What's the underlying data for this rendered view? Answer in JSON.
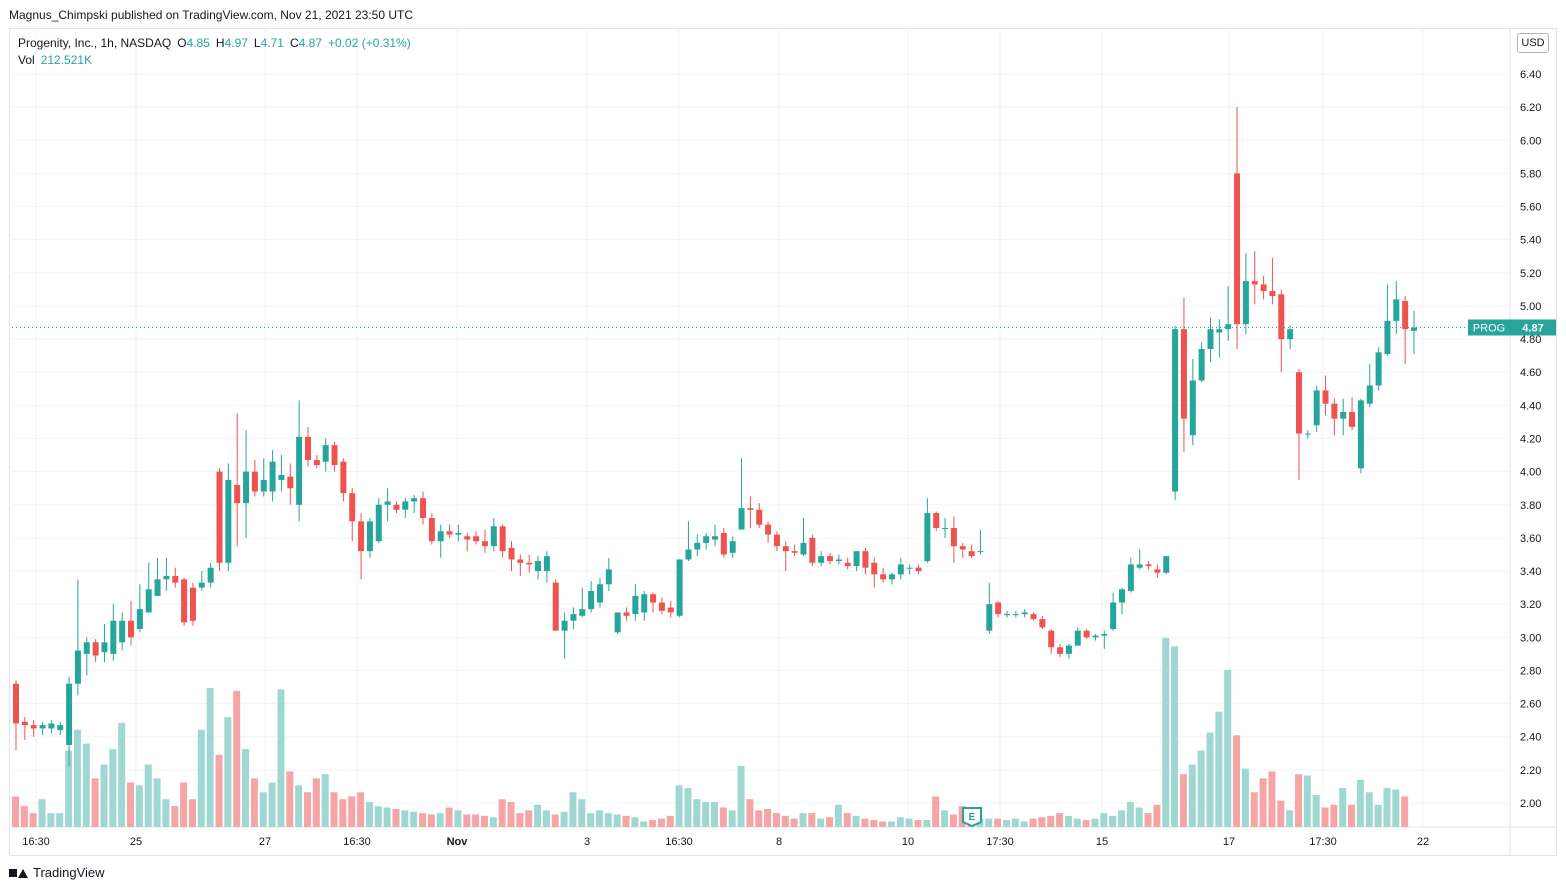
{
  "header": {
    "publisher": "Magnus_Chimpski published on TradingView.com, Nov 21, 2021 23:50 UTC"
  },
  "legend": {
    "symbol_line": "Progenity, Inc., 1h, NASDAQ",
    "o_label": "O",
    "o_value": "4.85",
    "h_label": "H",
    "h_value": "4.97",
    "l_label": "L",
    "l_value": "4.71",
    "c_label": "C",
    "c_value": "4.87",
    "change": "+0.02 (+0.31%)",
    "vol_label": "Vol",
    "vol_value": "212.521K"
  },
  "price_axis": {
    "currency": "USD",
    "ticks": [
      "6.40",
      "6.20",
      "6.00",
      "5.80",
      "5.60",
      "5.40",
      "5.20",
      "5.00",
      "4.80",
      "4.60",
      "4.40",
      "4.20",
      "4.00",
      "3.80",
      "3.60",
      "3.40",
      "3.20",
      "3.00",
      "2.80",
      "2.60",
      "2.40",
      "2.20",
      "2.00"
    ]
  },
  "last_price": {
    "symbol": "PROG",
    "value": "4.87"
  },
  "time_axis": {
    "labels": [
      "16:30",
      "25",
      "27",
      "16:30",
      "Nov",
      "3",
      "16:30",
      "8",
      "10",
      "17:30",
      "15",
      "17",
      "17:30",
      "22"
    ]
  },
  "footer": {
    "brand": "TradingView"
  },
  "earnings_marker": {
    "label": "E"
  },
  "colors": {
    "up": "#26a69a",
    "down": "#ef5350",
    "up_volume": "#9fd8d2",
    "down_volume": "#f5a5a5",
    "grid": "#f0f3fa",
    "axis_text": "#131722"
  },
  "chart_data": {
    "type": "candlestick",
    "title": "Progenity, Inc., 1h, NASDAQ",
    "ylabel": "USD",
    "ylim": [
      1.85,
      6.5
    ],
    "grid": true,
    "candles": [
      {
        "o": 2.72,
        "h": 2.74,
        "l": 2.32,
        "c": 2.48
      },
      {
        "o": 2.49,
        "h": 2.52,
        "l": 2.38,
        "c": 2.47
      },
      {
        "o": 2.47,
        "h": 2.5,
        "l": 2.4,
        "c": 2.45
      },
      {
        "o": 2.45,
        "h": 2.49,
        "l": 2.41,
        "c": 2.47
      },
      {
        "o": 2.45,
        "h": 2.5,
        "l": 2.42,
        "c": 2.48
      },
      {
        "o": 2.44,
        "h": 2.49,
        "l": 2.41,
        "c": 2.47
      },
      {
        "o": 2.35,
        "h": 2.76,
        "l": 2.22,
        "c": 2.72
      },
      {
        "o": 2.72,
        "h": 3.35,
        "l": 2.65,
        "c": 2.92
      },
      {
        "o": 2.9,
        "h": 3.0,
        "l": 2.77,
        "c": 2.97
      },
      {
        "o": 2.97,
        "h": 2.99,
        "l": 2.85,
        "c": 2.89
      },
      {
        "o": 2.91,
        "h": 3.08,
        "l": 2.85,
        "c": 2.97
      },
      {
        "o": 2.9,
        "h": 3.2,
        "l": 2.86,
        "c": 3.1
      },
      {
        "o": 2.97,
        "h": 3.15,
        "l": 2.92,
        "c": 3.1
      },
      {
        "o": 3.1,
        "h": 3.22,
        "l": 2.95,
        "c": 3.0
      },
      {
        "o": 3.05,
        "h": 3.32,
        "l": 3.03,
        "c": 3.17
      },
      {
        "o": 3.15,
        "h": 3.45,
        "l": 3.15,
        "c": 3.29
      },
      {
        "o": 3.25,
        "h": 3.48,
        "l": 3.25,
        "c": 3.35
      },
      {
        "o": 3.35,
        "h": 3.48,
        "l": 3.28,
        "c": 3.37
      },
      {
        "o": 3.37,
        "h": 3.42,
        "l": 3.3,
        "c": 3.33
      },
      {
        "o": 3.35,
        "h": 3.36,
        "l": 3.07,
        "c": 3.09
      },
      {
        "o": 3.3,
        "h": 3.33,
        "l": 3.07,
        "c": 3.1
      },
      {
        "o": 3.3,
        "h": 3.4,
        "l": 3.28,
        "c": 3.33
      },
      {
        "o": 3.33,
        "h": 3.45,
        "l": 3.3,
        "c": 3.42
      },
      {
        "o": 4.0,
        "h": 4.02,
        "l": 3.4,
        "c": 3.45
      },
      {
        "o": 3.45,
        "h": 4.05,
        "l": 3.4,
        "c": 3.95
      },
      {
        "o": 3.92,
        "h": 4.35,
        "l": 3.55,
        "c": 3.81
      },
      {
        "o": 3.81,
        "h": 4.25,
        "l": 3.6,
        "c": 4.0
      },
      {
        "o": 4.0,
        "h": 4.07,
        "l": 3.85,
        "c": 3.88
      },
      {
        "o": 3.88,
        "h": 4.08,
        "l": 3.85,
        "c": 3.95
      },
      {
        "o": 3.88,
        "h": 4.13,
        "l": 3.82,
        "c": 4.06
      },
      {
        "o": 3.95,
        "h": 4.1,
        "l": 3.88,
        "c": 3.98
      },
      {
        "o": 3.97,
        "h": 4.05,
        "l": 3.8,
        "c": 3.9
      },
      {
        "o": 3.8,
        "h": 4.43,
        "l": 3.7,
        "c": 4.21
      },
      {
        "o": 4.21,
        "h": 4.27,
        "l": 4.03,
        "c": 4.07
      },
      {
        "o": 4.07,
        "h": 4.1,
        "l": 4.02,
        "c": 4.04
      },
      {
        "o": 4.06,
        "h": 4.2,
        "l": 4.0,
        "c": 4.16
      },
      {
        "o": 4.16,
        "h": 4.18,
        "l": 4.0,
        "c": 4.04
      },
      {
        "o": 4.06,
        "h": 4.08,
        "l": 3.82,
        "c": 3.87
      },
      {
        "o": 3.87,
        "h": 3.9,
        "l": 3.58,
        "c": 3.7
      },
      {
        "o": 3.7,
        "h": 3.75,
        "l": 3.35,
        "c": 3.52
      },
      {
        "o": 3.52,
        "h": 3.72,
        "l": 3.48,
        "c": 3.7
      },
      {
        "o": 3.58,
        "h": 3.84,
        "l": 3.57,
        "c": 3.8
      },
      {
        "o": 3.8,
        "h": 3.9,
        "l": 3.7,
        "c": 3.82
      },
      {
        "o": 3.8,
        "h": 3.82,
        "l": 3.75,
        "c": 3.77
      },
      {
        "o": 3.77,
        "h": 3.84,
        "l": 3.72,
        "c": 3.82
      },
      {
        "o": 3.82,
        "h": 3.86,
        "l": 3.75,
        "c": 3.84
      },
      {
        "o": 3.84,
        "h": 3.88,
        "l": 3.68,
        "c": 3.72
      },
      {
        "o": 3.72,
        "h": 3.75,
        "l": 3.56,
        "c": 3.58
      },
      {
        "o": 3.58,
        "h": 3.68,
        "l": 3.48,
        "c": 3.64
      },
      {
        "o": 3.64,
        "h": 3.68,
        "l": 3.6,
        "c": 3.62
      },
      {
        "o": 3.62,
        "h": 3.68,
        "l": 3.58,
        "c": 3.63
      },
      {
        "o": 3.61,
        "h": 3.63,
        "l": 3.52,
        "c": 3.59
      },
      {
        "o": 3.61,
        "h": 3.64,
        "l": 3.56,
        "c": 3.58
      },
      {
        "o": 3.58,
        "h": 3.65,
        "l": 3.51,
        "c": 3.55
      },
      {
        "o": 3.55,
        "h": 3.72,
        "l": 3.52,
        "c": 3.67
      },
      {
        "o": 3.67,
        "h": 3.68,
        "l": 3.48,
        "c": 3.52
      },
      {
        "o": 3.54,
        "h": 3.58,
        "l": 3.4,
        "c": 3.47
      },
      {
        "o": 3.47,
        "h": 3.5,
        "l": 3.37,
        "c": 3.45
      },
      {
        "o": 3.45,
        "h": 3.5,
        "l": 3.39,
        "c": 3.44
      },
      {
        "o": 3.4,
        "h": 3.49,
        "l": 3.35,
        "c": 3.46
      },
      {
        "o": 3.4,
        "h": 3.52,
        "l": 3.33,
        "c": 3.49
      },
      {
        "o": 3.33,
        "h": 3.35,
        "l": 3.04,
        "c": 3.04
      },
      {
        "o": 3.04,
        "h": 3.15,
        "l": 2.87,
        "c": 3.1
      },
      {
        "o": 3.1,
        "h": 3.18,
        "l": 3.05,
        "c": 3.14
      },
      {
        "o": 3.13,
        "h": 3.3,
        "l": 3.12,
        "c": 3.17
      },
      {
        "o": 3.17,
        "h": 3.34,
        "l": 3.15,
        "c": 3.28
      },
      {
        "o": 3.21,
        "h": 3.36,
        "l": 3.18,
        "c": 3.32
      },
      {
        "o": 3.32,
        "h": 3.48,
        "l": 3.28,
        "c": 3.41
      },
      {
        "o": 3.03,
        "h": 3.15,
        "l": 3.02,
        "c": 3.15
      },
      {
        "o": 3.15,
        "h": 3.18,
        "l": 3.1,
        "c": 3.13
      },
      {
        "o": 3.14,
        "h": 3.32,
        "l": 3.1,
        "c": 3.25
      },
      {
        "o": 3.15,
        "h": 3.28,
        "l": 3.1,
        "c": 3.26
      },
      {
        "o": 3.26,
        "h": 3.27,
        "l": 3.15,
        "c": 3.21
      },
      {
        "o": 3.21,
        "h": 3.24,
        "l": 3.14,
        "c": 3.16
      },
      {
        "o": 3.18,
        "h": 3.22,
        "l": 3.12,
        "c": 3.15
      },
      {
        "o": 3.13,
        "h": 3.47,
        "l": 3.12,
        "c": 3.47
      },
      {
        "o": 3.47,
        "h": 3.7,
        "l": 3.46,
        "c": 3.53
      },
      {
        "o": 3.53,
        "h": 3.62,
        "l": 3.49,
        "c": 3.57
      },
      {
        "o": 3.57,
        "h": 3.63,
        "l": 3.53,
        "c": 3.61
      },
      {
        "o": 3.59,
        "h": 3.68,
        "l": 3.55,
        "c": 3.61
      },
      {
        "o": 3.63,
        "h": 3.66,
        "l": 3.48,
        "c": 3.5
      },
      {
        "o": 3.51,
        "h": 3.61,
        "l": 3.48,
        "c": 3.58
      },
      {
        "o": 3.65,
        "h": 4.08,
        "l": 3.65,
        "c": 3.78
      },
      {
        "o": 3.78,
        "h": 3.85,
        "l": 3.66,
        "c": 3.77
      },
      {
        "o": 3.77,
        "h": 3.81,
        "l": 3.66,
        "c": 3.68
      },
      {
        "o": 3.68,
        "h": 3.7,
        "l": 3.57,
        "c": 3.62
      },
      {
        "o": 3.62,
        "h": 3.64,
        "l": 3.52,
        "c": 3.55
      },
      {
        "o": 3.55,
        "h": 3.58,
        "l": 3.4,
        "c": 3.52
      },
      {
        "o": 3.52,
        "h": 3.56,
        "l": 3.49,
        "c": 3.51
      },
      {
        "o": 3.5,
        "h": 3.72,
        "l": 3.49,
        "c": 3.57
      },
      {
        "o": 3.6,
        "h": 3.62,
        "l": 3.43,
        "c": 3.45
      },
      {
        "o": 3.45,
        "h": 3.52,
        "l": 3.43,
        "c": 3.49
      },
      {
        "o": 3.49,
        "h": 3.51,
        "l": 3.44,
        "c": 3.46
      },
      {
        "o": 3.46,
        "h": 3.5,
        "l": 3.44,
        "c": 3.47
      },
      {
        "o": 3.45,
        "h": 3.48,
        "l": 3.41,
        "c": 3.43
      },
      {
        "o": 3.43,
        "h": 3.52,
        "l": 3.4,
        "c": 3.52
      },
      {
        "o": 3.52,
        "h": 3.54,
        "l": 3.38,
        "c": 3.42
      },
      {
        "o": 3.45,
        "h": 3.48,
        "l": 3.3,
        "c": 3.38
      },
      {
        "o": 3.38,
        "h": 3.42,
        "l": 3.33,
        "c": 3.35
      },
      {
        "o": 3.35,
        "h": 3.39,
        "l": 3.32,
        "c": 3.38
      },
      {
        "o": 3.38,
        "h": 3.48,
        "l": 3.35,
        "c": 3.44
      },
      {
        "o": 3.42,
        "h": 3.44,
        "l": 3.38,
        "c": 3.42
      },
      {
        "o": 3.42,
        "h": 3.44,
        "l": 3.38,
        "c": 3.4
      },
      {
        "o": 3.46,
        "h": 3.84,
        "l": 3.45,
        "c": 3.75
      },
      {
        "o": 3.75,
        "h": 3.76,
        "l": 3.64,
        "c": 3.66
      },
      {
        "o": 3.66,
        "h": 3.72,
        "l": 3.6,
        "c": 3.66
      },
      {
        "o": 3.66,
        "h": 3.73,
        "l": 3.45,
        "c": 3.55
      },
      {
        "o": 3.55,
        "h": 3.57,
        "l": 3.48,
        "c": 3.53
      },
      {
        "o": 3.52,
        "h": 3.56,
        "l": 3.48,
        "c": 3.49
      },
      {
        "o": 3.52,
        "h": 3.65,
        "l": 3.5,
        "c": 3.52
      },
      {
        "o": 3.04,
        "h": 3.33,
        "l": 3.02,
        "c": 3.2
      },
      {
        "o": 3.21,
        "h": 3.22,
        "l": 3.12,
        "c": 3.14
      },
      {
        "o": 3.14,
        "h": 3.16,
        "l": 3.12,
        "c": 3.14
      },
      {
        "o": 3.14,
        "h": 3.16,
        "l": 3.12,
        "c": 3.14
      },
      {
        "o": 3.14,
        "h": 3.17,
        "l": 3.12,
        "c": 3.15
      },
      {
        "o": 3.14,
        "h": 3.15,
        "l": 3.1,
        "c": 3.11
      },
      {
        "o": 3.11,
        "h": 3.13,
        "l": 3.05,
        "c": 3.06
      },
      {
        "o": 3.04,
        "h": 3.05,
        "l": 2.9,
        "c": 2.94
      },
      {
        "o": 2.94,
        "h": 2.96,
        "l": 2.88,
        "c": 2.9
      },
      {
        "o": 2.9,
        "h": 2.96,
        "l": 2.87,
        "c": 2.95
      },
      {
        "o": 2.95,
        "h": 3.06,
        "l": 2.95,
        "c": 3.04
      },
      {
        "o": 3.04,
        "h": 3.05,
        "l": 2.99,
        "c": 3.0
      },
      {
        "o": 3.0,
        "h": 3.02,
        "l": 2.98,
        "c": 3.01
      },
      {
        "o": 3.01,
        "h": 3.04,
        "l": 2.93,
        "c": 3.02
      },
      {
        "o": 3.05,
        "h": 3.27,
        "l": 3.04,
        "c": 3.21
      },
      {
        "o": 3.21,
        "h": 3.3,
        "l": 3.14,
        "c": 3.29
      },
      {
        "o": 3.28,
        "h": 3.48,
        "l": 3.27,
        "c": 3.44
      },
      {
        "o": 3.42,
        "h": 3.53,
        "l": 3.41,
        "c": 3.44
      },
      {
        "o": 3.44,
        "h": 3.46,
        "l": 3.41,
        "c": 3.43
      },
      {
        "o": 3.41,
        "h": 3.44,
        "l": 3.36,
        "c": 3.39
      },
      {
        "o": 3.39,
        "h": 3.49,
        "l": 3.38,
        "c": 3.49
      },
      {
        "o": 3.88,
        "h": 4.88,
        "l": 3.83,
        "c": 4.86
      },
      {
        "o": 4.86,
        "h": 5.05,
        "l": 4.12,
        "c": 4.32
      },
      {
        "o": 4.22,
        "h": 4.68,
        "l": 4.16,
        "c": 4.55
      },
      {
        "o": 4.55,
        "h": 4.78,
        "l": 4.54,
        "c": 4.74
      },
      {
        "o": 4.74,
        "h": 4.93,
        "l": 4.66,
        "c": 4.86
      },
      {
        "o": 4.84,
        "h": 4.92,
        "l": 4.69,
        "c": 4.86
      },
      {
        "o": 4.86,
        "h": 5.12,
        "l": 4.79,
        "c": 4.89
      },
      {
        "o": 5.8,
        "h": 6.2,
        "l": 4.74,
        "c": 4.89
      },
      {
        "o": 4.89,
        "h": 5.32,
        "l": 4.83,
        "c": 5.15
      },
      {
        "o": 5.15,
        "h": 5.33,
        "l": 5.01,
        "c": 5.13
      },
      {
        "o": 5.13,
        "h": 5.18,
        "l": 5.04,
        "c": 5.09
      },
      {
        "o": 5.09,
        "h": 5.29,
        "l": 5.01,
        "c": 5.06
      },
      {
        "o": 5.07,
        "h": 5.1,
        "l": 4.6,
        "c": 4.8
      },
      {
        "o": 4.8,
        "h": 4.88,
        "l": 4.74,
        "c": 4.86
      },
      {
        "o": 4.6,
        "h": 4.62,
        "l": 3.95,
        "c": 4.23
      },
      {
        "o": 4.23,
        "h": 4.25,
        "l": 4.2,
        "c": 4.23
      },
      {
        "o": 4.28,
        "h": 4.52,
        "l": 4.24,
        "c": 4.49
      },
      {
        "o": 4.49,
        "h": 4.58,
        "l": 4.34,
        "c": 4.41
      },
      {
        "o": 4.41,
        "h": 4.44,
        "l": 4.22,
        "c": 4.32
      },
      {
        "o": 4.32,
        "h": 4.44,
        "l": 4.22,
        "c": 4.36
      },
      {
        "o": 4.36,
        "h": 4.45,
        "l": 4.25,
        "c": 4.27
      },
      {
        "o": 4.02,
        "h": 4.44,
        "l": 3.99,
        "c": 4.43
      },
      {
        "o": 4.41,
        "h": 4.65,
        "l": 4.39,
        "c": 4.52
      },
      {
        "o": 4.52,
        "h": 4.75,
        "l": 4.49,
        "c": 4.72
      },
      {
        "o": 4.71,
        "h": 5.13,
        "l": 4.7,
        "c": 4.91
      },
      {
        "o": 4.91,
        "h": 5.15,
        "l": 4.83,
        "c": 5.04
      },
      {
        "o": 5.03,
        "h": 5.06,
        "l": 4.65,
        "c": 4.86
      },
      {
        "o": 4.85,
        "h": 4.97,
        "l": 4.71,
        "c": 4.87
      }
    ],
    "volume": [
      0.22,
      0.15,
      0.1,
      0.2,
      0.1,
      0.1,
      0.55,
      0.7,
      0.6,
      0.35,
      0.45,
      0.56,
      0.75,
      0.32,
      0.3,
      0.45,
      0.35,
      0.2,
      0.15,
      0.32,
      0.2,
      0.7,
      1.0,
      0.52,
      0.79,
      0.98,
      0.56,
      0.35,
      0.25,
      0.32,
      0.99,
      0.4,
      0.3,
      0.25,
      0.35,
      0.38,
      0.25,
      0.2,
      0.22,
      0.25,
      0.18,
      0.15,
      0.14,
      0.13,
      0.12,
      0.11,
      0.1,
      0.09,
      0.1,
      0.14,
      0.12,
      0.09,
      0.09,
      0.08,
      0.07,
      0.2,
      0.18,
      0.1,
      0.12,
      0.16,
      0.12,
      0.09,
      0.11,
      0.25,
      0.2,
      0.1,
      0.12,
      0.1,
      0.09,
      0.08,
      0.07,
      0.04,
      0.05,
      0.06,
      0.08,
      0.3,
      0.28,
      0.2,
      0.18,
      0.18,
      0.14,
      0.12,
      0.44,
      0.2,
      0.12,
      0.13,
      0.1,
      0.08,
      0.06,
      0.1,
      0.1,
      0.06,
      0.07,
      0.16,
      0.1,
      0.08,
      0.06,
      0.05,
      0.04,
      0.04,
      0.07,
      0.06,
      0.05,
      0.05,
      0.22,
      0.12,
      0.09,
      0.15,
      0.07,
      0.06,
      0.06,
      0.06,
      0.05,
      0.06,
      0.04,
      0.06,
      0.07,
      0.08,
      0.1,
      0.08,
      0.06,
      0.05,
      0.06,
      0.1,
      0.08,
      0.12,
      0.18,
      0.14,
      0.1,
      0.16,
      1.36,
      1.3,
      0.38,
      0.45,
      0.55,
      0.68,
      0.83,
      1.13,
      0.66,
      0.42,
      0.25,
      0.35,
      0.4,
      0.19,
      0.12,
      0.38,
      0.37,
      0.23,
      0.14,
      0.16,
      0.28,
      0.16,
      0.34,
      0.25,
      0.16,
      0.28,
      0.27,
      0.22
    ],
    "volume_unit": "M",
    "last_price": 4.87
  }
}
